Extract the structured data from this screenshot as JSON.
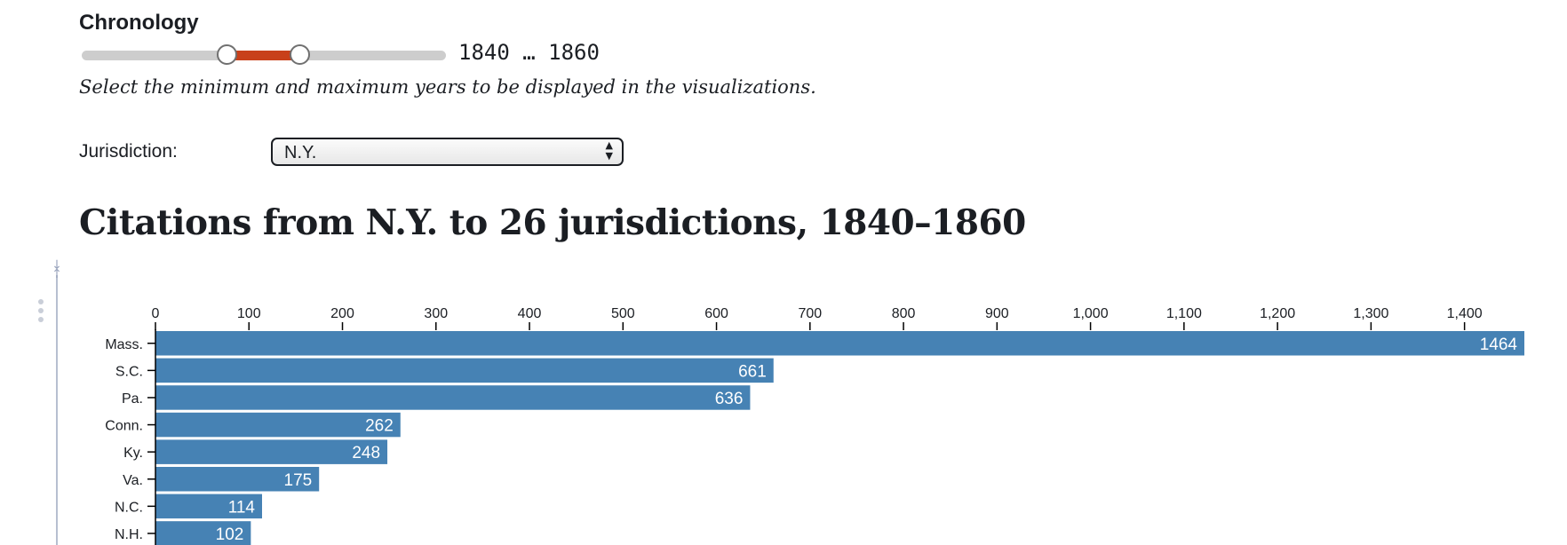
{
  "chronology": {
    "label": "Chronology",
    "min_year": 1840,
    "max_year": 1860,
    "readout": "1840 … 1860",
    "help": "Select the minimum and maximum years to be displayed in the visualizations."
  },
  "jurisdiction": {
    "label": "Jurisdiction:",
    "selected": "N.Y."
  },
  "colors": {
    "bar": "#4682b4",
    "range": "#c8401a"
  },
  "chart_data": {
    "type": "bar",
    "orientation": "horizontal",
    "title": "Citations from N.Y. to 26 jurisdictions, 1840–1860",
    "xlabel": "",
    "ylabel": "",
    "xlim": [
      0,
      1464
    ],
    "grid": false,
    "x_ticks": [
      "0",
      "100",
      "200",
      "300",
      "400",
      "500",
      "600",
      "700",
      "800",
      "900",
      "1,000",
      "1,100",
      "1,200",
      "1,300",
      "1,400"
    ],
    "categories": [
      "Mass.",
      "S.C.",
      "Pa.",
      "Conn.",
      "Ky.",
      "Va.",
      "N.C.",
      "N.H."
    ],
    "values": [
      1464,
      661,
      636,
      262,
      248,
      175,
      114,
      102
    ]
  }
}
